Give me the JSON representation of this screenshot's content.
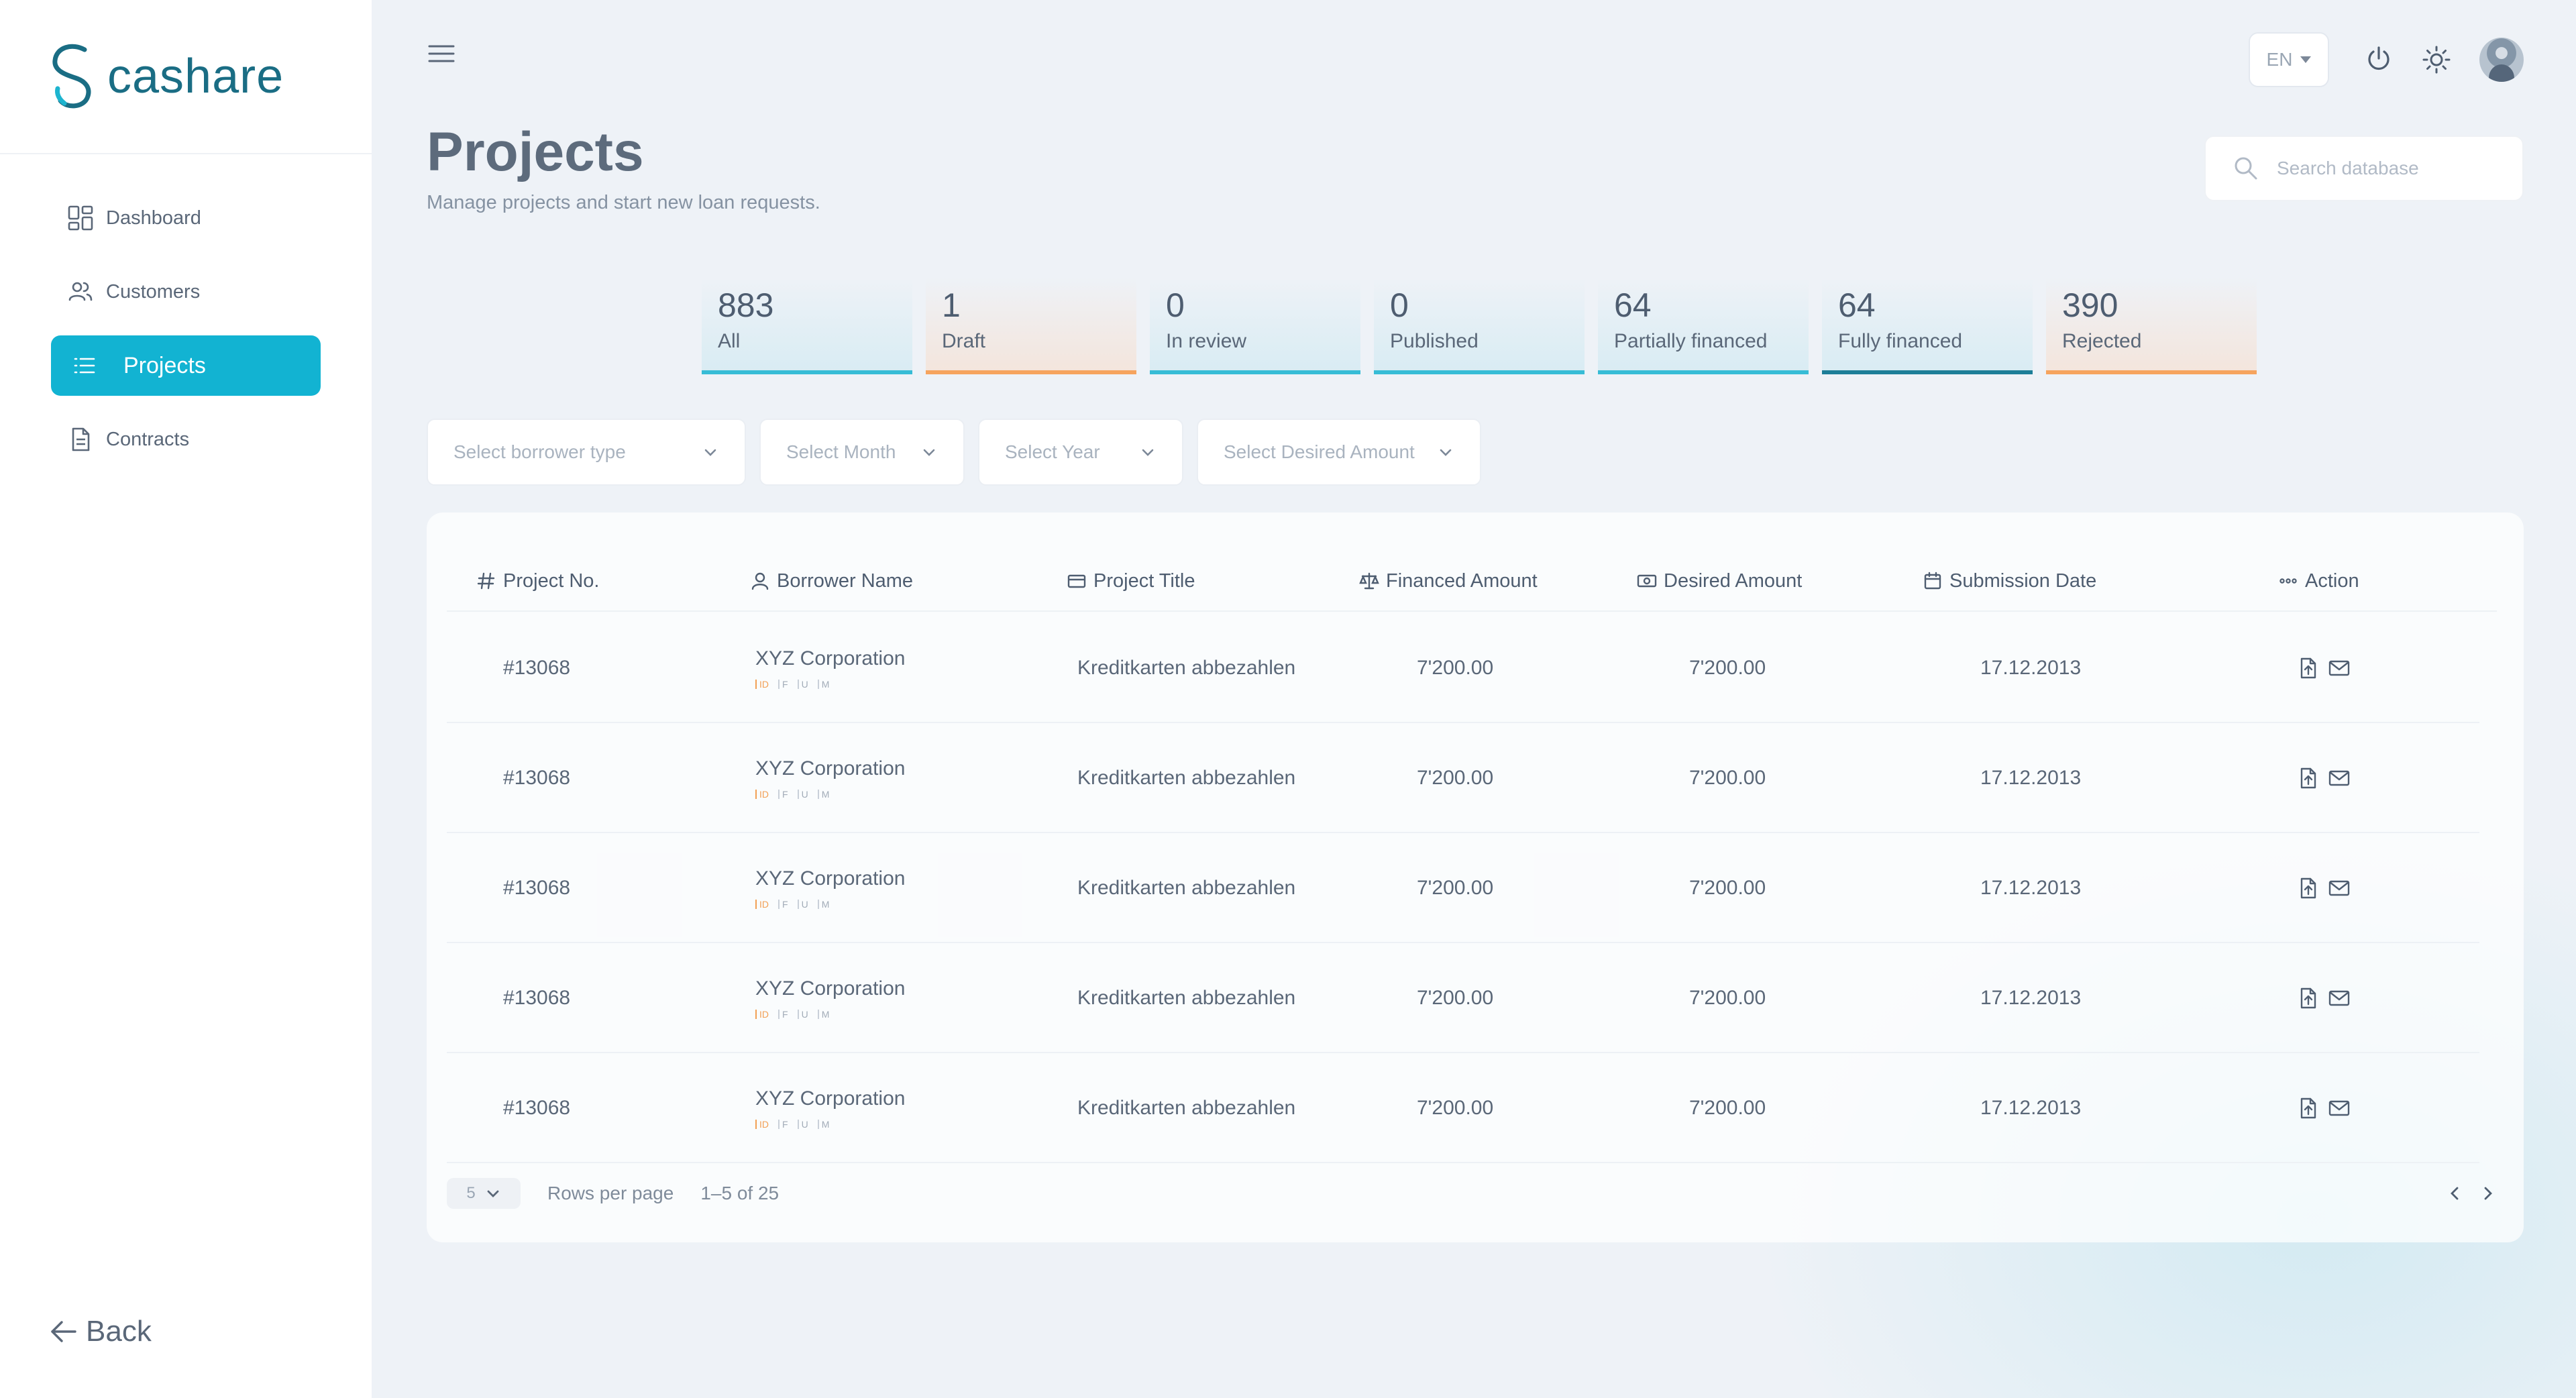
{
  "brand": {
    "name": "cashare"
  },
  "sidebar": {
    "items": [
      {
        "label": "Dashboard",
        "icon": "grid-icon",
        "active": false
      },
      {
        "label": "Customers",
        "icon": "users-icon",
        "active": false
      },
      {
        "label": "Projects",
        "icon": "list-icon",
        "active": true
      },
      {
        "label": "Contracts",
        "icon": "document-icon",
        "active": false
      }
    ],
    "back_label": "Back"
  },
  "header": {
    "language": "EN",
    "title": "Projects",
    "subtitle": "Manage projects and start new loan requests.",
    "search_placeholder": "Search database"
  },
  "stats": [
    {
      "count": "883",
      "label": "All",
      "accent": "#37bcd6"
    },
    {
      "count": "1",
      "label": "Draft",
      "accent": "#f6a45e"
    },
    {
      "count": "0",
      "label": "In review",
      "accent": "#37bcd6"
    },
    {
      "count": "0",
      "label": "Published",
      "accent": "#37bcd6"
    },
    {
      "count": "64",
      "label": "Partially financed",
      "accent": "#37bcd6"
    },
    {
      "count": "64",
      "label": "Fully financed",
      "accent": "#1d7e98"
    },
    {
      "count": "390",
      "label": "Rejected",
      "accent": "#f6a45e"
    }
  ],
  "filters": [
    {
      "placeholder": "Select borrower type"
    },
    {
      "placeholder": "Select Month"
    },
    {
      "placeholder": "Select Year"
    },
    {
      "placeholder": "Select Desired Amount"
    }
  ],
  "table": {
    "columns": [
      {
        "label": "Project No.",
        "icon": "hash-icon"
      },
      {
        "label": "Borrower Name",
        "icon": "user-icon"
      },
      {
        "label": "Project Title",
        "icon": "card-icon"
      },
      {
        "label": "Financed Amount",
        "icon": "scale-icon"
      },
      {
        "label": "Desired Amount",
        "icon": "banknote-icon"
      },
      {
        "label": "Submission Date",
        "icon": "calendar-icon"
      },
      {
        "label": "Action",
        "icon": "dots-icon"
      }
    ],
    "tags": [
      "ID",
      "F",
      "U",
      "M"
    ],
    "rows": [
      {
        "project_no": "#13068",
        "borrower": "XYZ Corporation",
        "title": "Kreditkarten abbezahlen",
        "financed": "7'200.00",
        "desired": "7'200.00",
        "date": "17.12.2013"
      },
      {
        "project_no": "#13068",
        "borrower": "XYZ Corporation",
        "title": "Kreditkarten abbezahlen",
        "financed": "7'200.00",
        "desired": "7'200.00",
        "date": "17.12.2013"
      },
      {
        "project_no": "#13068",
        "borrower": "XYZ Corporation",
        "title": "Kreditkarten abbezahlen",
        "financed": "7'200.00",
        "desired": "7'200.00",
        "date": "17.12.2013"
      },
      {
        "project_no": "#13068",
        "borrower": "XYZ Corporation",
        "title": "Kreditkarten abbezahlen",
        "financed": "7'200.00",
        "desired": "7'200.00",
        "date": "17.12.2013"
      },
      {
        "project_no": "#13068",
        "borrower": "XYZ Corporation",
        "title": "Kreditkarten abbezahlen",
        "financed": "7'200.00",
        "desired": "7'200.00",
        "date": "17.12.2013"
      }
    ]
  },
  "pagination": {
    "rows_per_page_value": "5",
    "rows_per_page_label": "Rows per page",
    "range": "1–5 of 25"
  }
}
